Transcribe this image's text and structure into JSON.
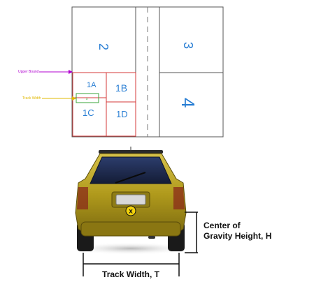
{
  "plot": {
    "zones": {
      "z2": "2",
      "z3": "3",
      "z4": "4",
      "z1a": "1A",
      "z1b": "1B",
      "z1c": "1C",
      "z1d": "1D",
      "inner": "x"
    },
    "upper_bound_label": "Upper Bound",
    "track_width_label": "Track Width",
    "colors": {
      "zone_text": "#2a7fd4",
      "zone_border": "#d43a3a",
      "upper_bound": "#b000d0",
      "track_width": "#e0b800",
      "inner_box": "#3aa63a"
    }
  },
  "car": {
    "cg_symbol": "x",
    "colors": {
      "body": "#b8a020",
      "window": "#1f2f55",
      "cg_marker": "#f2d10a"
    }
  },
  "dimensions": {
    "cg_height_line1": "Center of",
    "cg_height_line2": "Gravity Height, H",
    "track_width": "Track Width, T"
  }
}
